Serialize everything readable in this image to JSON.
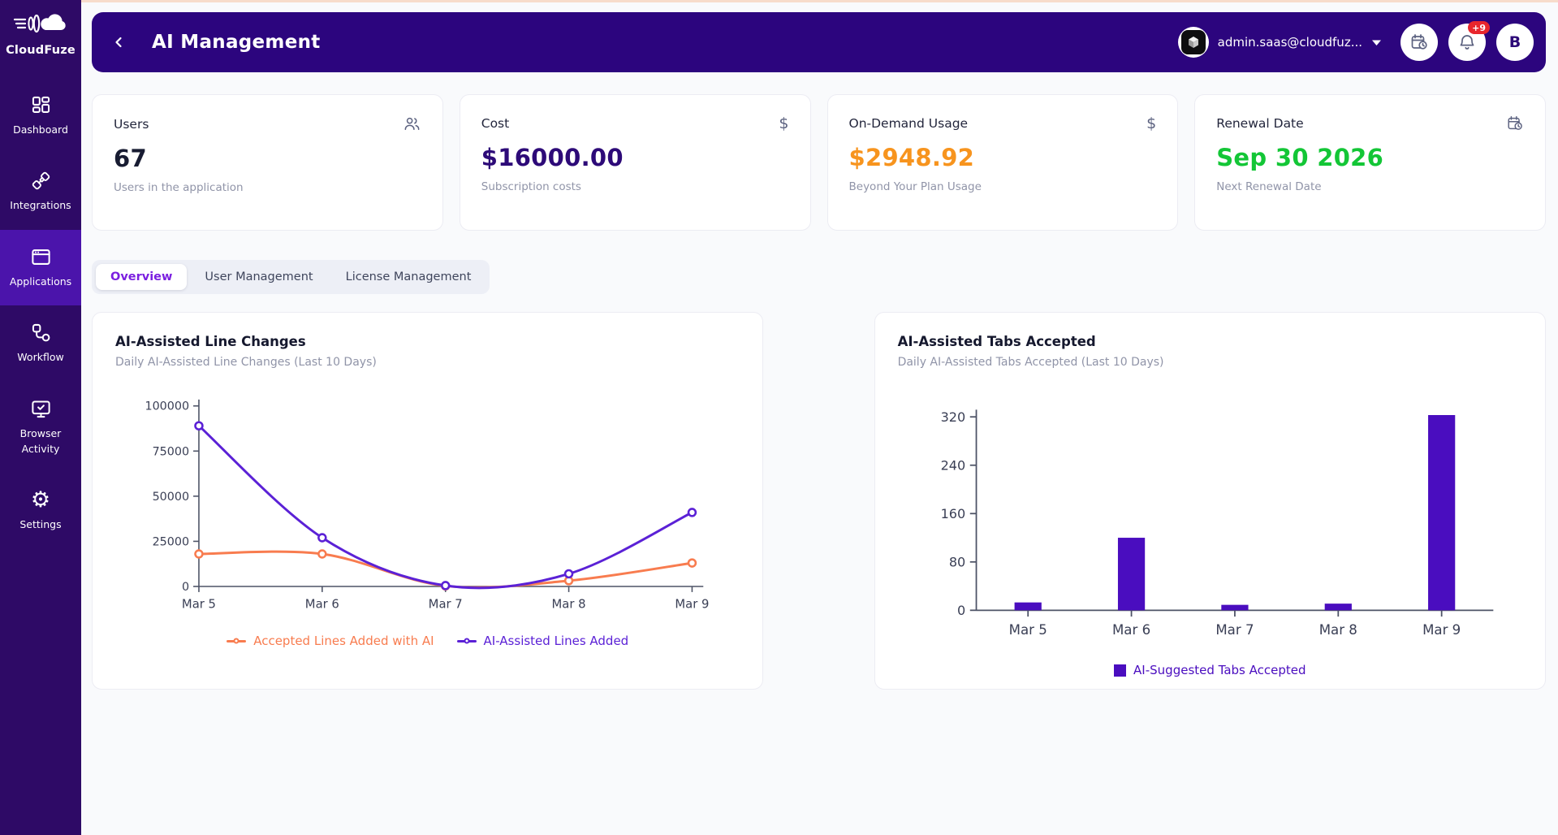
{
  "brand": {
    "name": "CloudFuze",
    "logo_icon": "cloudfuze-cloud-logo"
  },
  "sidebar": {
    "bg_color": "#2e0a66",
    "active_bg_color": "#4b14ab",
    "items": [
      {
        "label": "Dashboard",
        "icon": "dashboard-grid-icon",
        "active": false
      },
      {
        "label": "Integrations",
        "icon": "plug-icon",
        "active": false
      },
      {
        "label": "Applications",
        "icon": "browser-window-icon",
        "active": true
      },
      {
        "label": "Workflow",
        "icon": "workflow-nodes-icon",
        "active": false
      },
      {
        "label": "Browser Activity",
        "icon": "monitor-check-icon",
        "active": false
      },
      {
        "label": "Settings",
        "icon": "gear-icon",
        "active": false
      }
    ]
  },
  "header": {
    "bg_color": "#2c057e",
    "title": "AI Management",
    "back_icon": "chevron-left-icon",
    "user_email": "admin.saas@cloudfuz...",
    "user_avatar_icon": "cube-icon",
    "caret_icon": "chevron-down-icon",
    "calendar_button_icon": "calendar-clock-icon",
    "bell_button_icon": "bell-icon",
    "notification_badge": "+9",
    "profile_initial": "B"
  },
  "stats": {
    "cards": [
      {
        "label": "Users",
        "value": "67",
        "subtitle": "Users in the application",
        "icon": "users-icon",
        "value_color": "#181c32"
      },
      {
        "label": "Cost",
        "value": "$16000.00",
        "subtitle": "Subscription costs",
        "icon": "dollar-icon",
        "value_color": "#2d0a78"
      },
      {
        "label": "On-Demand Usage",
        "value": "$2948.92",
        "subtitle": "Beyond Your Plan Usage",
        "icon": "dollar-icon",
        "value_color": "#f7941e"
      },
      {
        "label": "Renewal Date",
        "value": "Sep 30 2026",
        "subtitle": "Next Renewal Date",
        "icon": "calendar-clock-icon",
        "value_color": "#13c636"
      }
    ]
  },
  "tabs": {
    "items": [
      {
        "label": "Overview",
        "active": true
      },
      {
        "label": "User Management",
        "active": false
      },
      {
        "label": "License Management",
        "active": false
      }
    ]
  },
  "chart_data": [
    {
      "type": "line",
      "title": "AI-Assisted Line Changes",
      "subtitle": "Daily AI-Assisted Line Changes (Last 10 Days)",
      "categories": [
        "Mar 5",
        "Mar 6",
        "Mar 7",
        "Mar 8",
        "Mar 9"
      ],
      "series": [
        {
          "name": "Accepted Lines Added with AI",
          "color": "#f87c4f",
          "values": [
            18000,
            18000,
            300,
            3200,
            13000
          ]
        },
        {
          "name": "AI-Assisted Lines Added",
          "color": "#5b21d6",
          "values": [
            89000,
            27000,
            500,
            7000,
            41000
          ]
        }
      ],
      "ylim": [
        0,
        100000
      ],
      "yticks": [
        0,
        25000,
        50000,
        75000,
        100000
      ],
      "grid": false,
      "legend_position": "bottom"
    },
    {
      "type": "bar",
      "title": "AI-Assisted Tabs Accepted",
      "subtitle": "Daily AI-Assisted Tabs Accepted (Last 10 Days)",
      "categories": [
        "Mar 5",
        "Mar 6",
        "Mar 7",
        "Mar 8",
        "Mar 9"
      ],
      "series": [
        {
          "name": "AI-Suggested Tabs Accepted",
          "color": "#4a0dbf",
          "values": [
            13,
            120,
            9,
            11,
            323
          ]
        }
      ],
      "ylim": [
        0,
        320
      ],
      "yticks": [
        0,
        80,
        160,
        240,
        320
      ],
      "grid": false,
      "legend_position": "bottom"
    }
  ]
}
